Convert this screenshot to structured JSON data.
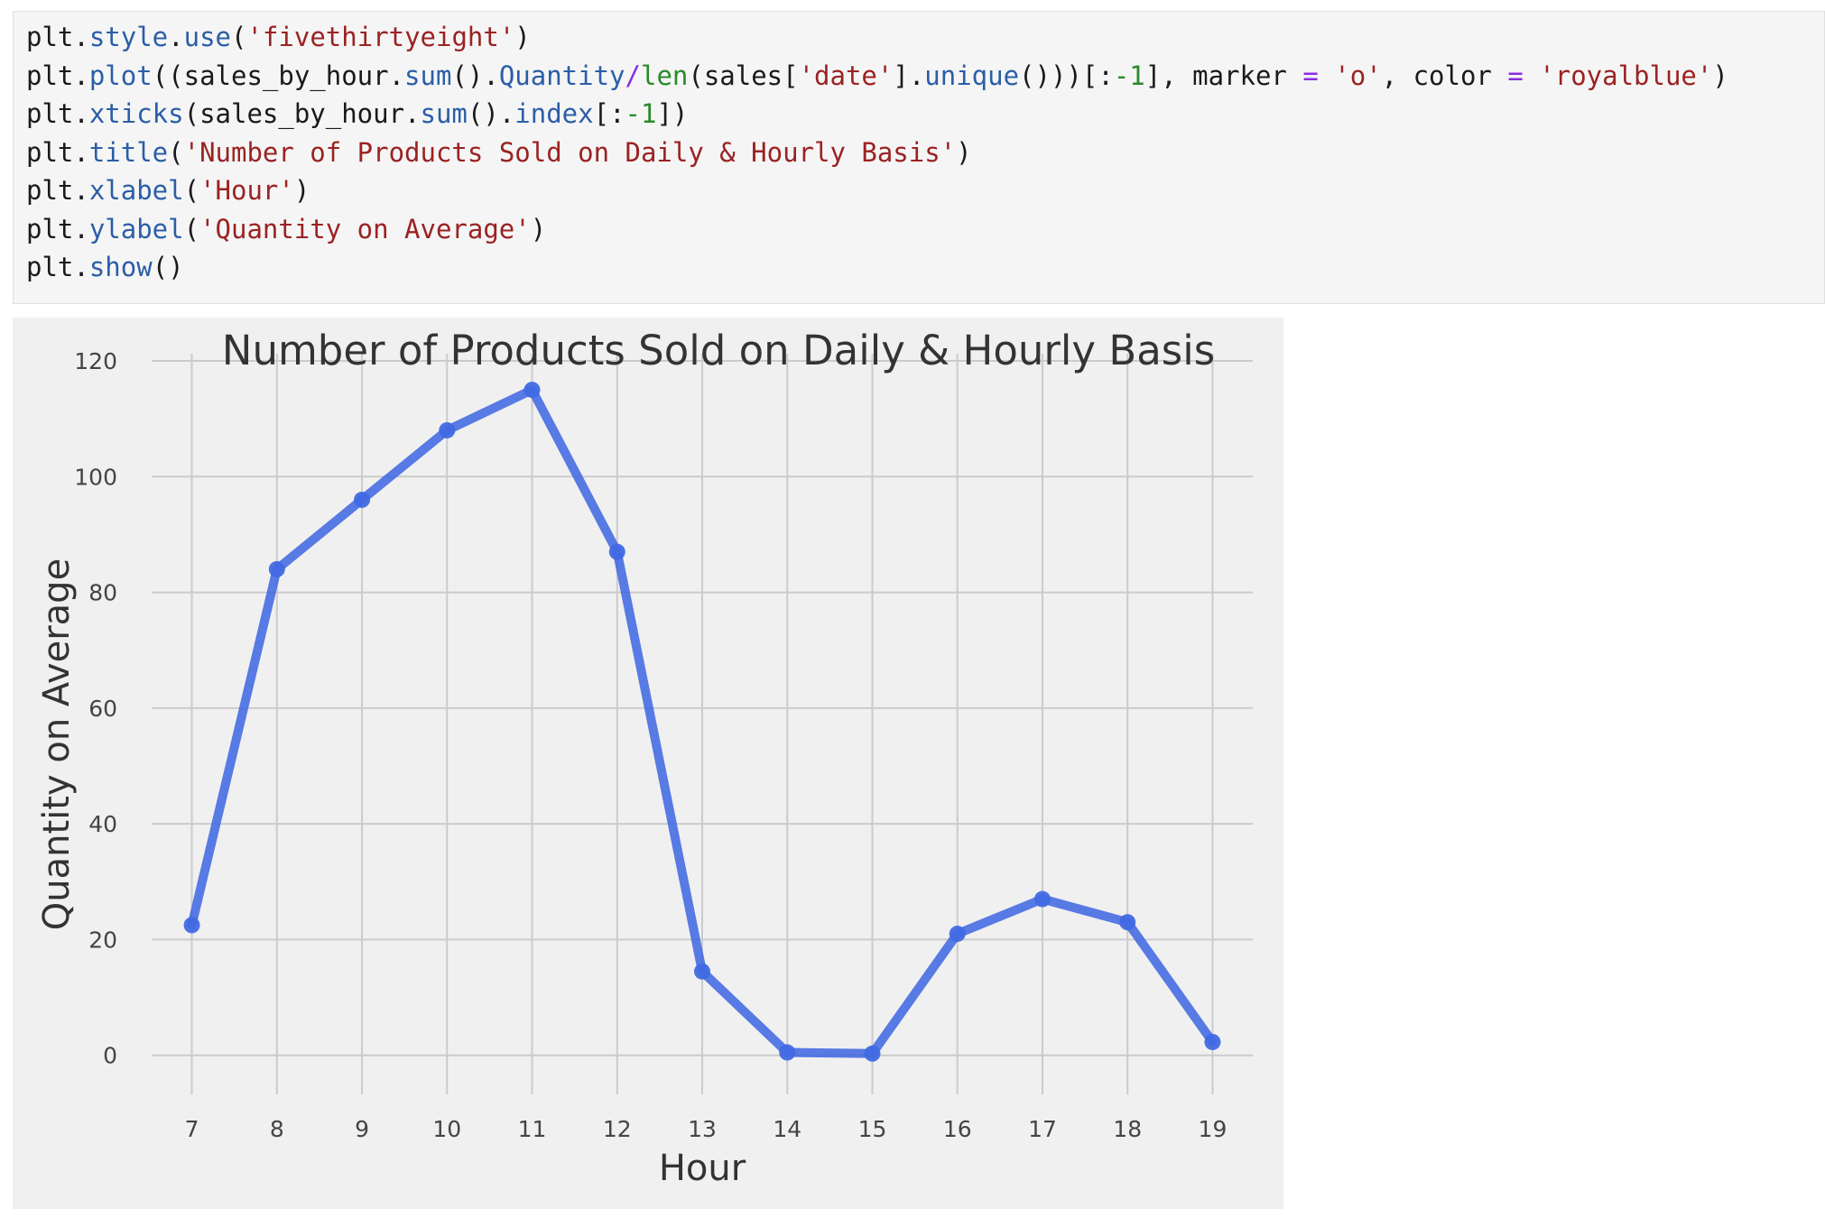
{
  "code": {
    "lines": [
      [
        [
          "plt.",
          ""
        ],
        [
          "style",
          "attr"
        ],
        [
          ".",
          ""
        ],
        [
          "use",
          "attr"
        ],
        [
          "(",
          ""
        ],
        [
          "'fivethirtyeight'",
          "str"
        ],
        [
          ")",
          ""
        ]
      ],
      [
        [
          "plt.",
          ""
        ],
        [
          "plot",
          "attr"
        ],
        [
          "((sales_by_hour.",
          ""
        ],
        [
          "sum",
          "attr"
        ],
        [
          "().",
          ""
        ],
        [
          "Quantity",
          "attr"
        ],
        [
          "/",
          "op"
        ],
        [
          "len",
          "bi"
        ],
        [
          "(sales[",
          ""
        ],
        [
          "'date'",
          "str"
        ],
        [
          "].",
          ""
        ],
        [
          "unique",
          "attr"
        ],
        [
          "()))[:",
          ""
        ],
        [
          "-1",
          "num"
        ],
        [
          "], marker ",
          ""
        ],
        [
          "=",
          "op"
        ],
        [
          " ",
          ""
        ],
        [
          "'o'",
          "str"
        ],
        [
          ", color ",
          ""
        ],
        [
          "=",
          "op"
        ],
        [
          " ",
          ""
        ],
        [
          "'royalblue'",
          "str"
        ],
        [
          ")",
          ""
        ]
      ],
      [
        [
          "plt.",
          ""
        ],
        [
          "xticks",
          "attr"
        ],
        [
          "(sales_by_hour.",
          ""
        ],
        [
          "sum",
          "attr"
        ],
        [
          "().",
          ""
        ],
        [
          "index",
          "attr"
        ],
        [
          "[:",
          ""
        ],
        [
          "-1",
          "num"
        ],
        [
          "])",
          ""
        ]
      ],
      [
        [
          "plt.",
          ""
        ],
        [
          "title",
          "attr"
        ],
        [
          "(",
          ""
        ],
        [
          "'Number of Products Sold on Daily & Hourly Basis'",
          "str"
        ],
        [
          ")",
          ""
        ]
      ],
      [
        [
          "plt.",
          ""
        ],
        [
          "xlabel",
          "attr"
        ],
        [
          "(",
          ""
        ],
        [
          "'Hour'",
          "str"
        ],
        [
          ")",
          ""
        ]
      ],
      [
        [
          "plt.",
          ""
        ],
        [
          "ylabel",
          "attr"
        ],
        [
          "(",
          ""
        ],
        [
          "'Quantity on Average'",
          "str"
        ],
        [
          ")",
          ""
        ]
      ],
      [
        [
          "plt.",
          ""
        ],
        [
          "show",
          "attr"
        ],
        [
          "()",
          ""
        ]
      ]
    ]
  },
  "colors": {
    "figure_bg": "#f0f0f0",
    "grid": "#cbcbcb",
    "line": "#4169e1",
    "text": "#333333",
    "tick_text": "#444444"
  },
  "chart_data": {
    "type": "line",
    "title": "Number of Products Sold on Daily & Hourly Basis",
    "xlabel": "Hour",
    "ylabel": "Quantity on Average",
    "x": [
      7,
      8,
      9,
      10,
      11,
      12,
      13,
      14,
      15,
      16,
      17,
      18,
      19
    ],
    "series": [
      {
        "values": [
          22.5,
          84,
          96,
          108,
          115,
          87,
          14.5,
          0.5,
          0.3,
          21,
          27,
          23,
          2.3
        ],
        "color": "#4169e1",
        "marker": "o"
      }
    ],
    "xticks": [
      "7",
      "8",
      "9",
      "10",
      "11",
      "12",
      "13",
      "14",
      "15",
      "16",
      "17",
      "18",
      "19"
    ],
    "yticks": [
      0,
      20,
      40,
      60,
      80,
      100,
      120
    ],
    "xlim": [
      6.4,
      19.6
    ],
    "ylim": [
      -5.5,
      120
    ],
    "grid": true,
    "legend": "none"
  }
}
